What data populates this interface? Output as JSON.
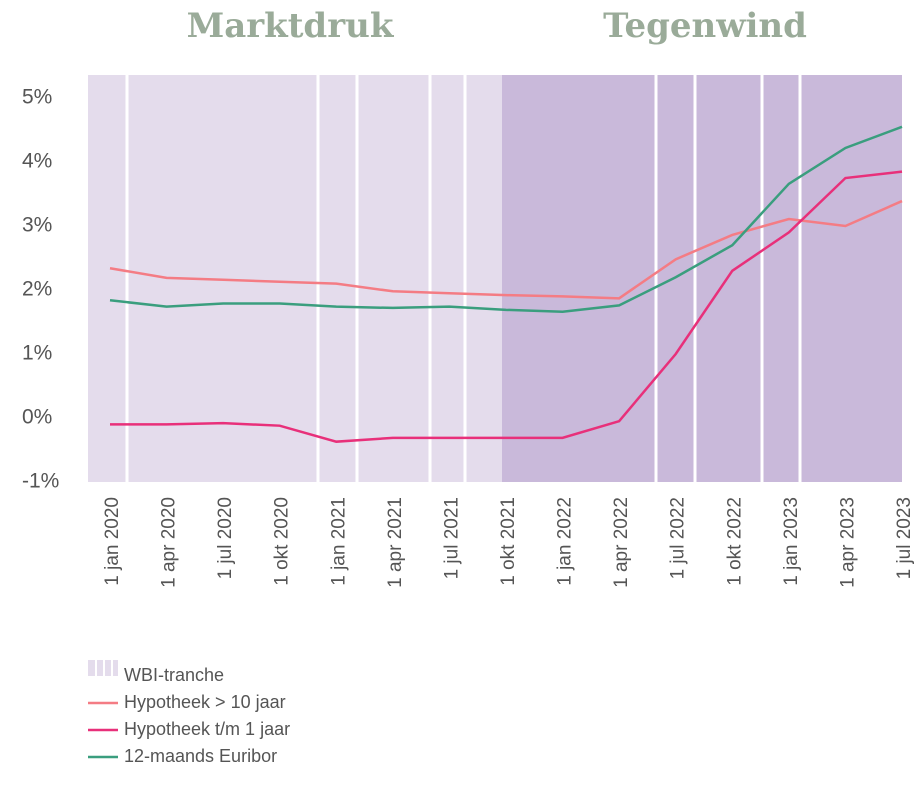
{
  "chart_data": {
    "type": "line",
    "annotations": [
      "Marktdruk",
      "Tegenwind"
    ],
    "shade_label": "WBI-tranche",
    "categories": [
      "1 jan 2020",
      "1 apr 2020",
      "1 jul 2020",
      "1 okt 2020",
      "1 jan 2021",
      "1 apr 2021",
      "1 jul 2021",
      "1 okt 2021",
      "1 jan 2022",
      "1 apr 2022",
      "1 jul 2022",
      "1 okt 2022",
      "1 jan 2023",
      "1 apr 2023",
      "1 jul 2023"
    ],
    "series": [
      {
        "name": "Hypotheek > 10 jaar",
        "color": "#f47c84",
        "values": [
          2.34,
          2.19,
          2.16,
          2.13,
          2.1,
          1.98,
          1.95,
          1.92,
          1.9,
          1.87,
          2.48,
          2.86,
          3.11,
          3.0,
          3.39
        ]
      },
      {
        "name": "Hypotheek t/m 1 jaar",
        "color": "#e8307a",
        "values": [
          -0.1,
          -0.1,
          -0.08,
          -0.12,
          -0.37,
          -0.31,
          -0.31,
          -0.31,
          -0.31,
          -0.05,
          1.0,
          2.3,
          2.9,
          3.75,
          3.85
        ]
      },
      {
        "name": "12-maands Euribor",
        "color": "#3a9e7e",
        "values": [
          1.84,
          1.74,
          1.79,
          1.79,
          1.74,
          1.72,
          1.74,
          1.69,
          1.66,
          1.76,
          2.2,
          2.7,
          3.66,
          4.22,
          4.55
        ]
      }
    ],
    "ylim": [
      -1,
      5.36
    ],
    "yticks": [
      {
        "value": -1,
        "label": "-1%"
      },
      {
        "value": 0,
        "label": "0%"
      },
      {
        "value": 1,
        "label": "1%"
      },
      {
        "value": 2,
        "label": "2%"
      },
      {
        "value": 3,
        "label": "3%"
      },
      {
        "value": 4,
        "label": "4%"
      },
      {
        "value": 5,
        "label": "5%"
      }
    ]
  }
}
